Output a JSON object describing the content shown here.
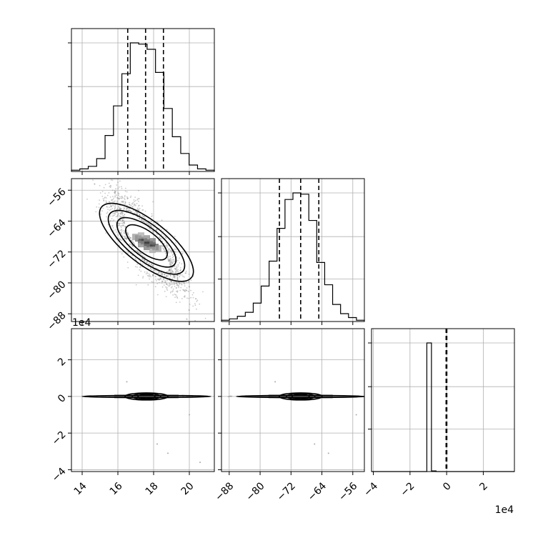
{
  "chart_data": {
    "type": "corner",
    "title": "",
    "parameters": [
      {
        "range": [
          13.4,
          21.4
        ],
        "ticks": [
          14,
          16,
          18,
          20
        ],
        "quantiles": [
          16.55,
          17.55,
          18.55
        ],
        "hist": [
          1,
          2,
          4,
          10,
          28,
          51,
          76,
          100,
          99,
          95,
          77,
          49,
          27,
          14,
          5,
          2,
          1
        ]
      },
      {
        "range": [
          -90,
          -53
        ],
        "ticks": [
          -88,
          -80,
          -72,
          -64,
          -56
        ],
        "quantiles": [
          -75,
          -69.5,
          -64.8
        ],
        "hist": [
          1,
          2,
          4,
          7,
          14,
          27,
          46,
          71,
          93,
          98,
          97,
          77,
          45,
          28,
          13,
          6,
          3,
          1
        ]
      },
      {
        "range": [
          -4.1,
          3.7
        ],
        "ticks": [
          -4,
          -2,
          0,
          2
        ],
        "multiplier": "1e4",
        "quantiles": [
          -0.03,
          -0.01,
          0.01
        ],
        "hist": [
          0,
          0,
          0,
          0,
          0,
          0,
          0,
          0,
          0,
          0,
          0,
          0,
          100,
          0.5,
          0,
          0,
          0,
          0,
          0,
          0,
          0,
          0,
          0,
          0,
          0,
          0,
          0,
          0,
          0,
          0,
          0
        ]
      }
    ],
    "correlation": {
      "center": [
        17.6,
        -69.5
      ],
      "sd": [
        1.0,
        6.0
      ],
      "rho": -0.82,
      "levels": [
        0.5,
        1.0,
        1.5,
        2.0
      ]
    },
    "multiplier_labels": {
      "y_row3": "1e4",
      "x_col3": "1e4"
    }
  }
}
